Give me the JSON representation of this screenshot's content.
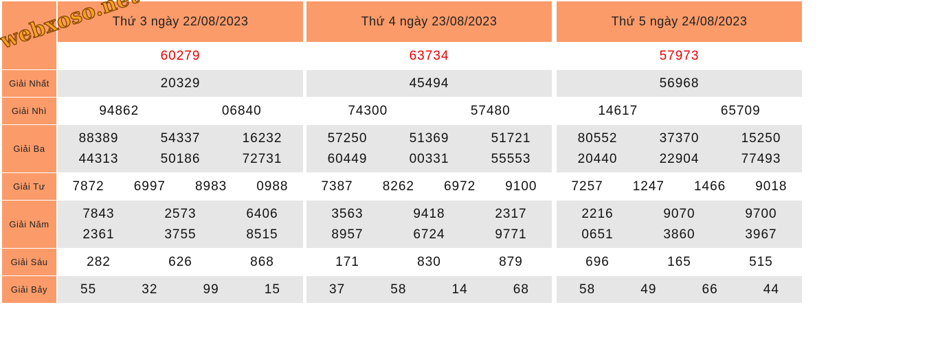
{
  "watermark": "webxoso.net",
  "labels": [
    "Giải Nhất",
    "Giải Nhì",
    "Giải Ba",
    "Giải Tư",
    "Giải Năm",
    "Giải Sáu",
    "Giải Bảy"
  ],
  "days": [
    {
      "title": "Thứ 3 ngày 22/08/2023",
      "special": "60279",
      "prizes": [
        [
          "20329"
        ],
        [
          "94862",
          "06840"
        ],
        [
          "88389",
          "54337",
          "16232",
          "44313",
          "50186",
          "72731"
        ],
        [
          "7872",
          "6997",
          "8983",
          "0988"
        ],
        [
          "7843",
          "2573",
          "6406",
          "2361",
          "3755",
          "8515"
        ],
        [
          "282",
          "626",
          "868"
        ],
        [
          "55",
          "32",
          "99",
          "15"
        ]
      ]
    },
    {
      "title": "Thứ 4 ngày 23/08/2023",
      "special": "63734",
      "prizes": [
        [
          "45494"
        ],
        [
          "74300",
          "57480"
        ],
        [
          "57250",
          "51369",
          "51721",
          "60449",
          "00331",
          "55553"
        ],
        [
          "7387",
          "8262",
          "6972",
          "9100"
        ],
        [
          "3563",
          "9418",
          "2317",
          "8957",
          "6724",
          "9771"
        ],
        [
          "171",
          "830",
          "879"
        ],
        [
          "37",
          "58",
          "14",
          "68"
        ]
      ]
    },
    {
      "title": "Thứ 5 ngày 24/08/2023",
      "special": "57973",
      "prizes": [
        [
          "56968"
        ],
        [
          "14617",
          "65709"
        ],
        [
          "80552",
          "37370",
          "15250",
          "20440",
          "22904",
          "77493"
        ],
        [
          "7257",
          "1247",
          "1466",
          "9018"
        ],
        [
          "2216",
          "9070",
          "9700",
          "0651",
          "3860",
          "3967"
        ],
        [
          "696",
          "165",
          "515"
        ],
        [
          "58",
          "49",
          "66",
          "44"
        ]
      ]
    }
  ]
}
